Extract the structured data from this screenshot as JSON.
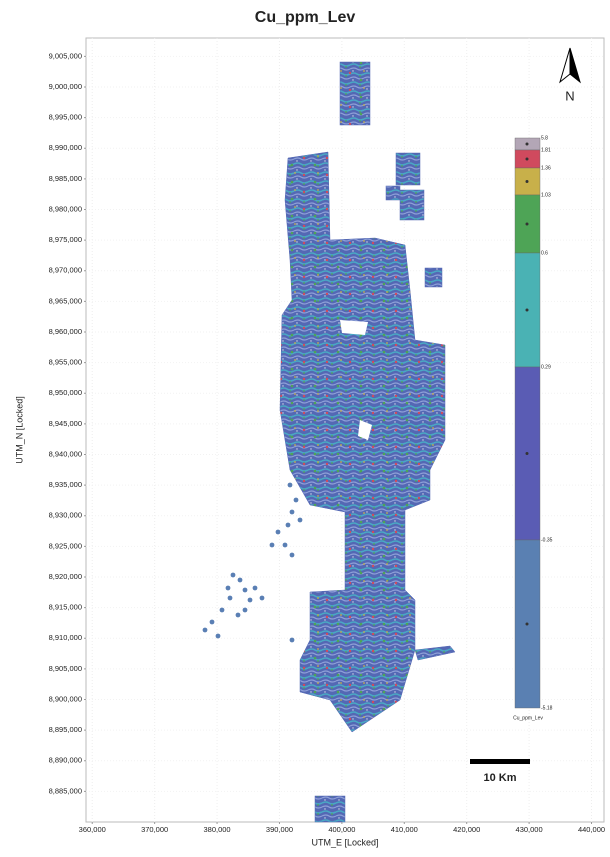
{
  "chart_data": {
    "type": "map",
    "title": "Cu_ppm_Lev",
    "x_label": "UTM_E [Locked]",
    "y_label": "UTM_N [Locked]",
    "xlim": [
      359000,
      442000
    ],
    "ylim": [
      8880000,
      9008000
    ],
    "xticks": [
      {
        "value": 360000,
        "label": "360,000"
      },
      {
        "value": 370000,
        "label": "370,000"
      },
      {
        "value": 380000,
        "label": "380,000"
      },
      {
        "value": 390000,
        "label": "390,000"
      },
      {
        "value": 400000,
        "label": "400,000"
      },
      {
        "value": 410000,
        "label": "410,000"
      },
      {
        "value": 420000,
        "label": "420,000"
      },
      {
        "value": 430000,
        "label": "430,000"
      },
      {
        "value": 440000,
        "label": "440,000"
      }
    ],
    "yticks": [
      {
        "value": 8885000,
        "label": "8,885,000"
      },
      {
        "value": 8890000,
        "label": "8,890,000"
      },
      {
        "value": 8895000,
        "label": "8,895,000"
      },
      {
        "value": 8900000,
        "label": "8,900,000"
      },
      {
        "value": 8905000,
        "label": "8,905,000"
      },
      {
        "value": 8910000,
        "label": "8,910,000"
      },
      {
        "value": 8915000,
        "label": "8,915,000"
      },
      {
        "value": 8920000,
        "label": "8,920,000"
      },
      {
        "value": 8925000,
        "label": "8,925,000"
      },
      {
        "value": 8930000,
        "label": "8,930,000"
      },
      {
        "value": 8935000,
        "label": "8,935,000"
      },
      {
        "value": 8940000,
        "label": "8,940,000"
      },
      {
        "value": 8945000,
        "label": "8,945,000"
      },
      {
        "value": 8950000,
        "label": "8,950,000"
      },
      {
        "value": 8955000,
        "label": "8,955,000"
      },
      {
        "value": 8960000,
        "label": "8,960,000"
      },
      {
        "value": 8965000,
        "label": "8,965,000"
      },
      {
        "value": 8970000,
        "label": "8,970,000"
      },
      {
        "value": 8975000,
        "label": "8,975,000"
      },
      {
        "value": 8980000,
        "label": "8,980,000"
      },
      {
        "value": 8985000,
        "label": "8,985,000"
      },
      {
        "value": 8990000,
        "label": "8,990,000"
      },
      {
        "value": 8995000,
        "label": "8,995,000"
      },
      {
        "value": 9000000,
        "label": "9,000,000"
      },
      {
        "value": 9005000,
        "label": "9,005,000"
      }
    ],
    "grid": true,
    "colorbar": {
      "levels": [
        5.8,
        1.81,
        1.36,
        1.03,
        0.6,
        0.29,
        -0.35,
        -5.18
      ],
      "colors": [
        "#b3a6b6",
        "#d04a5e",
        "#c8b04a",
        "#4ea456",
        "#4ab2b4",
        "#5a5cb4",
        "#5a80b2"
      ],
      "label": "Cu_ppm_Lev"
    },
    "scale_bar": "10 Km",
    "north": "N"
  }
}
